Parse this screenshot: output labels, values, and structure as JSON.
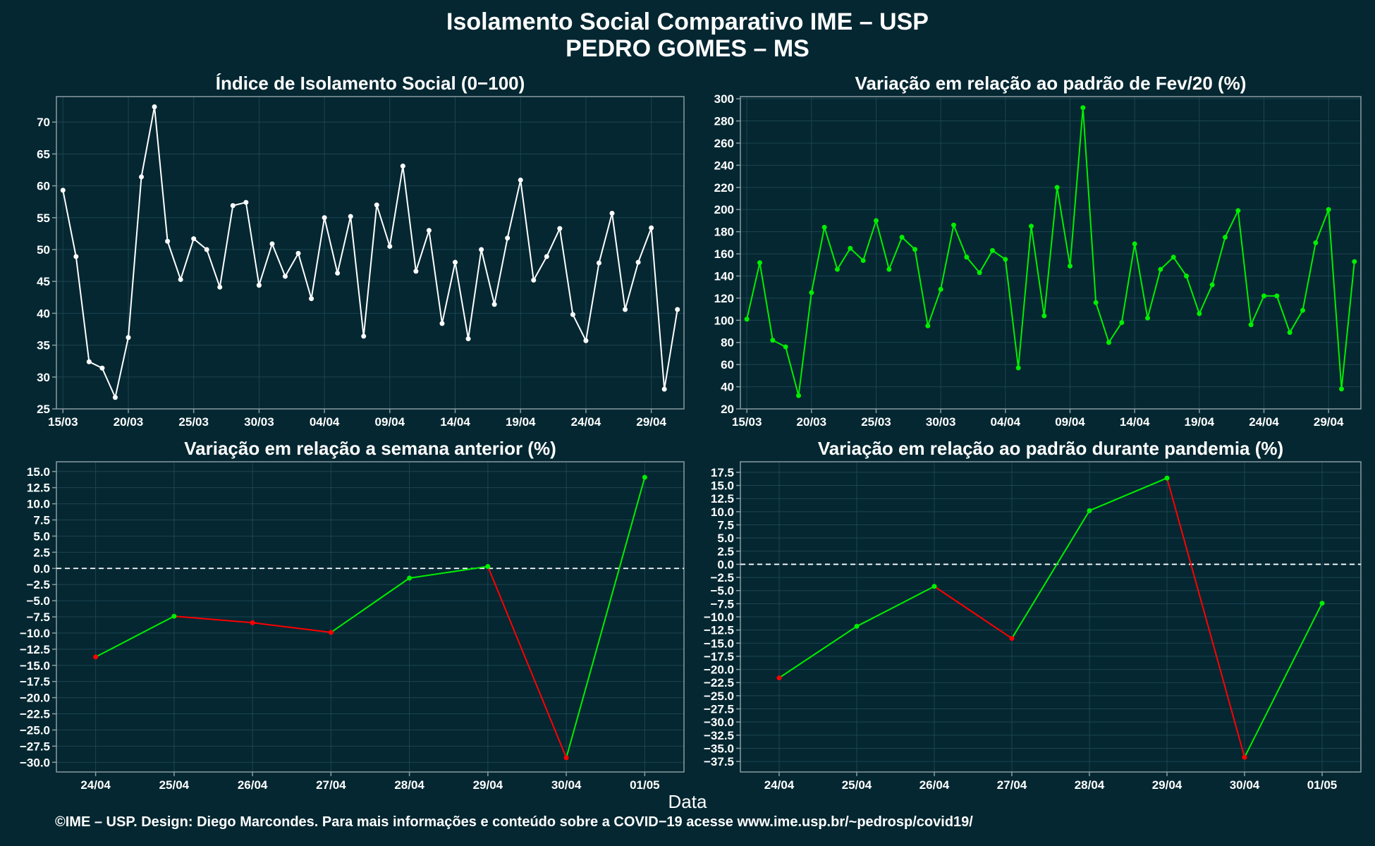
{
  "title": {
    "line1": "Isolamento Social Comparativo IME – USP",
    "line2": "PEDRO GOMES – MS"
  },
  "x_axis_title": "Data",
  "footer": "©IME – USP. Design: Diego Marcondes. Para mais informações e conteúdo sobre a COVID−19 acesse www.ime.usp.br/~pedrosp/covid19/",
  "colors": {
    "background": "#042731",
    "axis": "#8a9ba3",
    "grid": "#1d4553",
    "white_series": "#ffffff",
    "green_series": "#00ee00",
    "red_series": "#ff0000"
  },
  "chart_data": [
    {
      "id": "indice",
      "type": "line",
      "title": "Índice de Isolamento Social (0−100)",
      "color": "#ffffff",
      "ylim": [
        25,
        74
      ],
      "yticks": [
        25,
        30,
        35,
        40,
        45,
        50,
        55,
        60,
        65,
        70
      ],
      "ytick_labels": [
        "25",
        "30",
        "35",
        "40",
        "45",
        "50",
        "55",
        "60",
        "65",
        "70"
      ],
      "xlim": [
        14.5,
        62.5
      ],
      "xticks": [
        15,
        20,
        25,
        30,
        35,
        40,
        45,
        50,
        55,
        60
      ],
      "xtick_labels": [
        "15/03",
        "20/03",
        "25/03",
        "30/03",
        "04/04",
        "09/04",
        "14/04",
        "19/04",
        "24/04",
        "29/04"
      ],
      "x": [
        15,
        16,
        17,
        18,
        19,
        20,
        21,
        22,
        23,
        24,
        25,
        26,
        27,
        28,
        29,
        30,
        31,
        32,
        33,
        34,
        35,
        36,
        37,
        38,
        39,
        40,
        41,
        42,
        43,
        44,
        45,
        46,
        47,
        48,
        49,
        50,
        51,
        52,
        53,
        54,
        55,
        56,
        57,
        58,
        59,
        60,
        61,
        62
      ],
      "values": [
        59.3,
        48.9,
        32.4,
        31.4,
        26.8,
        36.2,
        61.4,
        72.4,
        51.3,
        45.3,
        51.7,
        50.0,
        44.1,
        56.9,
        57.4,
        44.4,
        50.9,
        45.8,
        49.4,
        42.3,
        55.0,
        46.3,
        55.2,
        36.4,
        57.0,
        50.5,
        63.1,
        46.6,
        53.0,
        38.4,
        48.0,
        36.0,
        50.0,
        41.4,
        51.8,
        60.9,
        45.2,
        48.9,
        53.3,
        39.8,
        35.7,
        47.9,
        55.7,
        40.6,
        48.0,
        53.4,
        28.1,
        40.6
      ]
    },
    {
      "id": "variacao_fev",
      "type": "line",
      "title": "Variação em relação ao padrão de Fev/20 (%)",
      "color": "#00ee00",
      "ylim": [
        20,
        302
      ],
      "yticks": [
        20,
        40,
        60,
        80,
        100,
        120,
        140,
        160,
        180,
        200,
        220,
        240,
        260,
        280,
        300
      ],
      "ytick_labels": [
        "20",
        "40",
        "60",
        "80",
        "100",
        "120",
        "140",
        "160",
        "180",
        "200",
        "220",
        "240",
        "260",
        "280",
        "300"
      ],
      "xlim": [
        14.5,
        62.5
      ],
      "xticks": [
        15,
        20,
        25,
        30,
        35,
        40,
        45,
        50,
        55,
        60
      ],
      "xtick_labels": [
        "15/03",
        "20/03",
        "25/03",
        "30/03",
        "04/04",
        "09/04",
        "14/04",
        "19/04",
        "24/04",
        "29/04"
      ],
      "x": [
        15,
        16,
        17,
        18,
        19,
        20,
        21,
        22,
        23,
        24,
        25,
        26,
        27,
        28,
        29,
        30,
        31,
        32,
        33,
        34,
        35,
        36,
        37,
        38,
        39,
        40,
        41,
        42,
        43,
        44,
        45,
        46,
        47,
        48,
        49,
        50,
        51,
        52,
        53,
        54,
        55,
        56,
        57,
        58,
        59,
        60,
        61,
        62
      ],
      "values": [
        101,
        152,
        82,
        76,
        32,
        125,
        184,
        146,
        165,
        154,
        190,
        146,
        175,
        164,
        95,
        128,
        186,
        157,
        143,
        163,
        155,
        57,
        185,
        104,
        220,
        149,
        292,
        116,
        80,
        98,
        169,
        102,
        146,
        157,
        140,
        106,
        132,
        175,
        199,
        96,
        122,
        122,
        89,
        109,
        170,
        200,
        38,
        153
      ]
    },
    {
      "id": "variacao_semana",
      "type": "line",
      "title": "Variação em relação a semana anterior (%)",
      "color_up": "#00ee00",
      "color_down": "#ff0000",
      "ylim": [
        -31.5,
        16.5
      ],
      "yticks": [
        -30,
        -27.5,
        -25,
        -22.5,
        -20,
        -17.5,
        -15,
        -12.5,
        -10,
        -7.5,
        -5,
        -2.5,
        0,
        2.5,
        5,
        7.5,
        10,
        12.5,
        15
      ],
      "ytick_labels": [
        "−30.0",
        "−27.5",
        "−25.0",
        "−22.5",
        "−20.0",
        "−17.5",
        "−15.0",
        "−12.5",
        "−10.0",
        "−7.5",
        "−5.0",
        "−2.5",
        "0.0",
        "2.5",
        "5.0",
        "7.5",
        "10.0",
        "12.5",
        "15.0"
      ],
      "categories": [
        "24/04",
        "25/04",
        "26/04",
        "27/04",
        "28/04",
        "29/04",
        "30/04",
        "01/05"
      ],
      "values": [
        -13.7,
        -7.4,
        -8.4,
        -9.9,
        -1.5,
        0.3,
        -29.3,
        14.1
      ],
      "reference_line": 0
    },
    {
      "id": "variacao_pandemia",
      "type": "line",
      "title": "Variação em relação ao padrão durante pandemia (%)",
      "color_up": "#00ee00",
      "color_down": "#ff0000",
      "ylim": [
        -39.5,
        19.5
      ],
      "yticks": [
        -37.5,
        -35,
        -32.5,
        -30,
        -27.5,
        -25,
        -22.5,
        -20,
        -17.5,
        -15,
        -12.5,
        -10,
        -7.5,
        -5,
        -2.5,
        0,
        2.5,
        5,
        7.5,
        10,
        12.5,
        15,
        17.5
      ],
      "ytick_labels": [
        "−37.5",
        "−35.0",
        "−32.5",
        "−30.0",
        "−27.5",
        "−25.0",
        "−22.5",
        "−20.0",
        "−17.5",
        "−15.0",
        "−12.5",
        "−10.0",
        "−7.5",
        "−5.0",
        "−2.5",
        "0.0",
        "2.5",
        "5.0",
        "7.5",
        "10.0",
        "12.5",
        "15.0",
        "17.5"
      ],
      "categories": [
        "24/04",
        "25/04",
        "26/04",
        "27/04",
        "28/04",
        "29/04",
        "30/04",
        "01/05"
      ],
      "values": [
        -21.6,
        -11.8,
        -4.2,
        -14.1,
        10.2,
        16.4,
        -36.7,
        -7.4
      ],
      "reference_line": 0
    }
  ]
}
